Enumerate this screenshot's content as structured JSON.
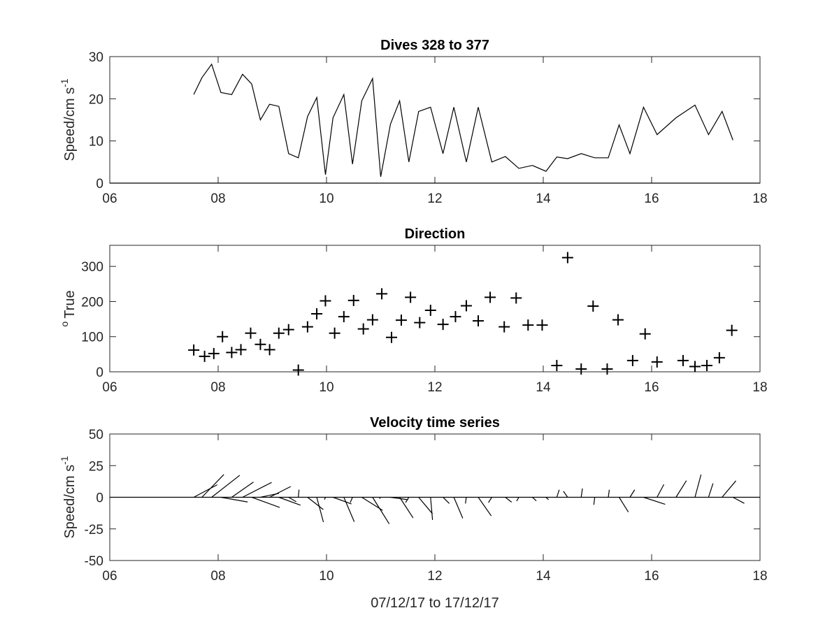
{
  "figure": {
    "xlabel": "07/12/17 to 17/12/17",
    "x_ticks": [
      6,
      8,
      10,
      12,
      14,
      16,
      18
    ],
    "x_tick_labels": [
      "06",
      "08",
      "10",
      "12",
      "14",
      "16",
      "18"
    ],
    "xlim": [
      6,
      18
    ]
  },
  "chart_data": [
    {
      "type": "line",
      "title": "Dives 328 to 377",
      "ylabel_main": "Speed/cm s",
      "ylabel_sup": "-1",
      "ylim": [
        0,
        30
      ],
      "y_ticks": [
        0,
        10,
        20,
        30
      ],
      "y_tick_labels": [
        "0",
        "10",
        "20",
        "30"
      ],
      "grid": false,
      "series": [
        {
          "x": [
            7.55,
            7.7,
            7.88,
            8.05,
            8.25,
            8.45,
            8.62,
            8.78,
            8.95,
            9.12,
            9.3,
            9.48,
            9.65,
            9.82,
            9.98,
            10.12,
            10.32,
            10.48,
            10.65,
            10.85,
            11.0,
            11.18,
            11.35,
            11.52,
            11.7,
            11.92,
            12.15,
            12.35,
            12.58,
            12.8,
            13.05,
            13.3,
            13.55,
            13.8,
            14.05,
            14.25,
            14.45,
            14.7,
            14.95,
            15.2,
            15.4,
            15.6,
            15.85,
            16.1,
            16.45,
            16.8,
            17.05,
            17.3,
            17.5
          ],
          "values": [
            21,
            25,
            28.2,
            21.5,
            21,
            25.8,
            23.5,
            15,
            18.7,
            18.2,
            7,
            6,
            15.8,
            20.3,
            2,
            15.5,
            21,
            4.5,
            19.5,
            24.8,
            1.5,
            14,
            19.5,
            5,
            17,
            18,
            7,
            18,
            5,
            18,
            5,
            6.3,
            3.5,
            4.2,
            2.8,
            6.2,
            5.8,
            7,
            6,
            6,
            13.8,
            7,
            18,
            11.5,
            15.5,
            18.5,
            11.5,
            17,
            10.2
          ]
        }
      ]
    },
    {
      "type": "scatter",
      "title": "Direction",
      "ylabel_main": "True",
      "ylabel_sup": "o",
      "ylim": [
        0,
        360
      ],
      "y_ticks": [
        0,
        100,
        200,
        300
      ],
      "y_tick_labels": [
        "0",
        "100",
        "200",
        "300"
      ],
      "grid": false,
      "marker": "+",
      "series": [
        {
          "x": [
            7.55,
            7.75,
            7.92,
            8.08,
            8.25,
            8.42,
            8.6,
            8.78,
            8.95,
            9.12,
            9.3,
            9.48,
            9.65,
            9.82,
            9.98,
            10.15,
            10.32,
            10.5,
            10.68,
            10.85,
            11.02,
            11.2,
            11.38,
            11.55,
            11.72,
            11.92,
            12.15,
            12.38,
            12.58,
            12.8,
            13.02,
            13.28,
            13.5,
            13.72,
            13.98,
            14.25,
            14.45,
            14.7,
            14.92,
            15.18,
            15.38,
            15.65,
            15.88,
            16.1,
            16.58,
            16.8,
            17.02,
            17.25,
            17.48
          ],
          "values": [
            62,
            44,
            52,
            100,
            55,
            63,
            110,
            78,
            63,
            110,
            120,
            5,
            128,
            165,
            202,
            110,
            157,
            203,
            122,
            148,
            222,
            98,
            147,
            212,
            140,
            175,
            135,
            157,
            188,
            145,
            212,
            128,
            210,
            133,
            133,
            18,
            325,
            8,
            187,
            8,
            148,
            32,
            108,
            28,
            32,
            15,
            18,
            40,
            118
          ]
        }
      ]
    },
    {
      "type": "quiver",
      "title": "Velocity time series",
      "ylabel_main": "Speed/cm s",
      "ylabel_sup": "-1",
      "ylim": [
        -50,
        50
      ],
      "y_ticks": [
        -50,
        -25,
        0,
        25,
        50
      ],
      "y_tick_labels": [
        "-50",
        "-25",
        "0",
        "25",
        "50"
      ],
      "grid": false,
      "series": [
        {
          "x": [
            7.55,
            7.7,
            7.88,
            8.05,
            8.25,
            8.45,
            8.62,
            8.78,
            8.95,
            9.12,
            9.3,
            9.48,
            9.65,
            9.82,
            9.98,
            10.12,
            10.32,
            10.48,
            10.65,
            10.85,
            11.0,
            11.18,
            11.35,
            11.52,
            11.7,
            11.92,
            12.15,
            12.35,
            12.58,
            12.8,
            13.05,
            13.3,
            13.55,
            13.8,
            14.05,
            14.25,
            14.45,
            14.7,
            14.95,
            15.2,
            15.4,
            15.6,
            15.85,
            16.1,
            16.45,
            16.8,
            17.05,
            17.3,
            17.5
          ],
          "speed": [
            21,
            25,
            28.2,
            21.5,
            21,
            25.8,
            23.5,
            15,
            18.7,
            18.2,
            7,
            6,
            15.8,
            20.3,
            2,
            15.5,
            21,
            4.5,
            19.5,
            24.8,
            1.5,
            14,
            19.5,
            5,
            17,
            18,
            7,
            18,
            5,
            18,
            5,
            6.3,
            3.5,
            4.2,
            2.8,
            6.2,
            5.8,
            7,
            6,
            6,
            13.8,
            7,
            18,
            11.5,
            15.5,
            18.5,
            11.5,
            17,
            10.2
          ],
          "direction": [
            62,
            44,
            52,
            100,
            55,
            63,
            110,
            78,
            63,
            110,
            120,
            5,
            128,
            165,
            202,
            110,
            157,
            203,
            122,
            148,
            222,
            98,
            147,
            212,
            140,
            175,
            135,
            157,
            188,
            145,
            212,
            128,
            210,
            133,
            133,
            18,
            325,
            8,
            187,
            8,
            148,
            32,
            108,
            28,
            32,
            15,
            18,
            40,
            118
          ]
        }
      ]
    }
  ]
}
